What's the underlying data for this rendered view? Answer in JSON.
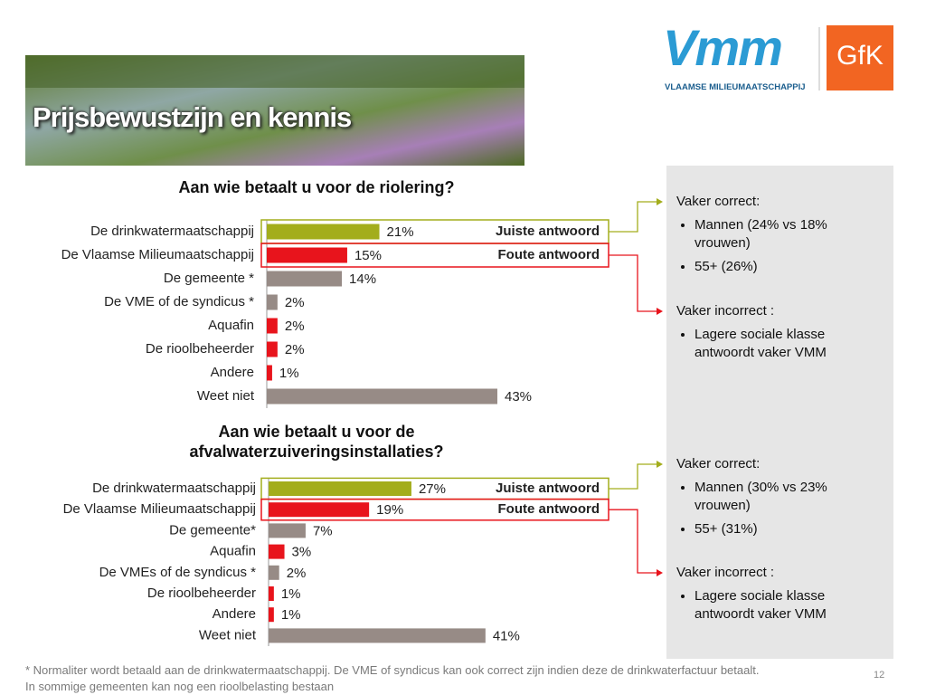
{
  "header": {
    "title": "Prijsbewustzijn en kennis",
    "logo_vmm": "Vmm",
    "logo_vmm_sub": "VLAAMSE MILIEUMAATSCHAPPIJ",
    "logo_gfk": "GfK"
  },
  "chart_data": [
    {
      "type": "bar",
      "orientation": "horizontal",
      "title": "Aan wie betaalt u voor de riolering?",
      "categories": [
        "De drinkwatermaatschappij",
        "De Vlaamse Milieumaatschappij",
        "De gemeente *",
        "De VME of de syndicus *",
        "Aquafin",
        "De rioolbeheerder",
        "Andere",
        "Weet niet"
      ],
      "values": [
        21,
        15,
        14,
        2,
        2,
        2,
        1,
        43
      ],
      "value_labels": [
        "21%",
        "15%",
        "14%",
        "2%",
        "2%",
        "2%",
        "1%",
        "43%"
      ],
      "colors": [
        "#a3ad1c",
        "#e8141c",
        "#978b86",
        "#978b86",
        "#e8141c",
        "#e8141c",
        "#e8141c",
        "#978b86"
      ],
      "annotations": [
        "Juiste antwoord",
        "Foute antwoord"
      ]
    },
    {
      "type": "bar",
      "orientation": "horizontal",
      "title": "Aan wie betaalt u voor de afvalwaterzuiveringsinstallaties?",
      "categories": [
        "De drinkwatermaatschappij",
        "De Vlaamse Milieumaatschappij",
        "De gemeente*",
        "Aquafin",
        "De VMEs of de syndicus *",
        "De rioolbeheerder",
        "Andere",
        "Weet niet"
      ],
      "values": [
        27,
        19,
        7,
        3,
        2,
        1,
        1,
        41
      ],
      "value_labels": [
        "27%",
        "19%",
        "7%",
        "3%",
        "2%",
        "1%",
        "1%",
        "41%"
      ],
      "colors": [
        "#a3ad1c",
        "#e8141c",
        "#978b86",
        "#e8141c",
        "#978b86",
        "#e8141c",
        "#e8141c",
        "#978b86"
      ],
      "annotations": [
        "Juiste antwoord",
        "Foute antwoord"
      ]
    }
  ],
  "side_notes": [
    {
      "heading": "Vaker correct:",
      "bullets": [
        "Mannen (24% vs 18% vrouwen)",
        "55+ (26%)"
      ]
    },
    {
      "heading": "Vaker incorrect :",
      "bullets": [
        "Lagere sociale klasse antwoordt vaker VMM"
      ]
    },
    {
      "heading": "Vaker correct:",
      "bullets": [
        "Mannen (30% vs 23% vrouwen)",
        "55+ (31%)"
      ]
    },
    {
      "heading": "Vaker incorrect :",
      "bullets": [
        "Lagere sociale klasse antwoordt vaker VMM"
      ]
    }
  ],
  "footer": {
    "note": [
      "* Normaliter wordt betaald aan de drinkwatermaatschappij. De VME of syndicus kan ook correct zijn indien deze de drinkwaterfactuur betaalt.",
      "In sommige gemeenten kan nog een rioolbelasting bestaan"
    ],
    "page_number": "12"
  }
}
